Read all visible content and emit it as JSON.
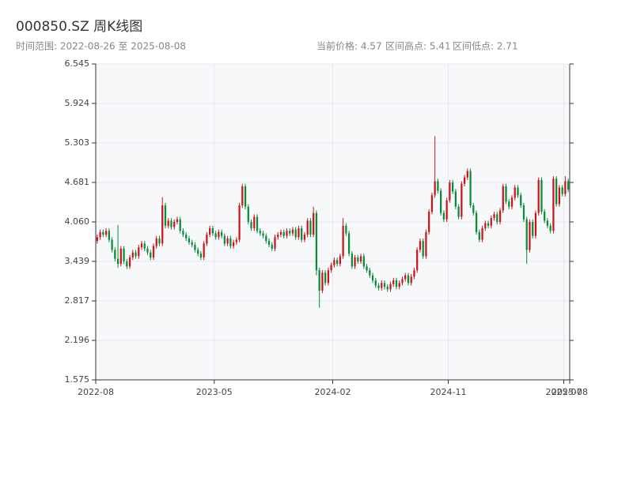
{
  "chart_data": {
    "type": "candlestick",
    "title": "000850.SZ 周K线图",
    "subtitle": "时间范围: 2022-08-26 至 2025-08-08",
    "stats": [
      "当前价格: 4.57",
      "区间高点: 5.41",
      "区间低点: 2.71"
    ],
    "up_color": "#c8161d",
    "down_color": "#0b8a3a",
    "ylim": [
      1.575,
      6.545
    ],
    "yticks": [
      1.575,
      2.196,
      2.817,
      3.439,
      {
        "value": 4.06,
        "label": "4.060"
      },
      4.681,
      5.303,
      5.924,
      6.545
    ],
    "xlim": [
      0,
      160
    ],
    "xticks": [
      {
        "value": 0,
        "label": "2022-08"
      },
      {
        "value": 40,
        "label": "2023-05"
      },
      {
        "value": 80,
        "label": "2024-02"
      },
      {
        "value": 119,
        "label": "2024-11"
      },
      {
        "value": 158,
        "label": "2025-07"
      },
      {
        "value": 160,
        "label": "2025-08"
      }
    ],
    "grid": true,
    "ohlc": [
      [
        3.76,
        3.86,
        3.72,
        3.82
      ],
      [
        3.82,
        3.94,
        3.78,
        3.9
      ],
      [
        3.9,
        3.94,
        3.82,
        3.86
      ],
      [
        3.86,
        3.96,
        3.82,
        3.92
      ],
      [
        3.92,
        3.96,
        3.74,
        3.78
      ],
      [
        3.78,
        3.82,
        3.58,
        3.62
      ],
      [
        3.62,
        3.66,
        3.44,
        3.48
      ],
      [
        3.48,
        4.01,
        3.34,
        3.4
      ],
      [
        3.4,
        3.68,
        3.36,
        3.64
      ],
      [
        3.64,
        3.68,
        3.4,
        3.44
      ],
      [
        3.44,
        3.48,
        3.32,
        3.36
      ],
      [
        3.36,
        3.54,
        3.32,
        3.5
      ],
      [
        3.5,
        3.62,
        3.46,
        3.58
      ],
      [
        3.58,
        3.62,
        3.48,
        3.52
      ],
      [
        3.52,
        3.7,
        3.48,
        3.66
      ],
      [
        3.66,
        3.76,
        3.62,
        3.72
      ],
      [
        3.72,
        3.76,
        3.6,
        3.64
      ],
      [
        3.64,
        3.68,
        3.54,
        3.58
      ],
      [
        3.58,
        3.62,
        3.46,
        3.5
      ],
      [
        3.5,
        3.72,
        3.46,
        3.68
      ],
      [
        3.68,
        3.84,
        3.64,
        3.8
      ],
      [
        3.8,
        3.84,
        3.68,
        3.72
      ],
      [
        3.72,
        4.45,
        3.68,
        4.32
      ],
      [
        4.32,
        4.36,
        3.96,
        4.0
      ],
      [
        4.0,
        4.12,
        3.96,
        4.08
      ],
      [
        4.08,
        4.12,
        3.94,
        3.98
      ],
      [
        3.98,
        4.1,
        3.94,
        4.06
      ],
      [
        4.06,
        4.14,
        4.02,
        4.1
      ],
      [
        4.1,
        4.14,
        3.88,
        3.92
      ],
      [
        3.92,
        3.96,
        3.82,
        3.86
      ],
      [
        3.86,
        3.9,
        3.76,
        3.8
      ],
      [
        3.8,
        3.84,
        3.7,
        3.74
      ],
      [
        3.74,
        3.78,
        3.66,
        3.7
      ],
      [
        3.7,
        3.74,
        3.58,
        3.62
      ],
      [
        3.62,
        3.66,
        3.52,
        3.56
      ],
      [
        3.56,
        3.6,
        3.46,
        3.5
      ],
      [
        3.5,
        3.76,
        3.46,
        3.72
      ],
      [
        3.72,
        3.9,
        3.68,
        3.86
      ],
      [
        3.86,
        4.0,
        3.82,
        3.96
      ],
      [
        3.96,
        4.0,
        3.84,
        3.88
      ],
      [
        3.88,
        3.92,
        3.78,
        3.82
      ],
      [
        3.82,
        3.94,
        3.78,
        3.9
      ],
      [
        3.9,
        3.94,
        3.8,
        3.84
      ],
      [
        3.84,
        3.88,
        3.68,
        3.72
      ],
      [
        3.72,
        3.84,
        3.68,
        3.8
      ],
      [
        3.8,
        3.84,
        3.64,
        3.68
      ],
      [
        3.68,
        3.78,
        3.64,
        3.74
      ],
      [
        3.74,
        3.82,
        3.7,
        3.78
      ],
      [
        3.78,
        4.36,
        3.74,
        4.32
      ],
      [
        4.32,
        4.66,
        4.28,
        4.62
      ],
      [
        4.62,
        4.66,
        4.26,
        4.3
      ],
      [
        4.3,
        4.34,
        4.02,
        4.06
      ],
      [
        4.06,
        4.1,
        3.92,
        3.96
      ],
      [
        3.96,
        4.18,
        3.92,
        4.14
      ],
      [
        4.14,
        4.18,
        3.88,
        3.92
      ],
      [
        3.92,
        3.96,
        3.84,
        3.88
      ],
      [
        3.88,
        3.92,
        3.8,
        3.84
      ],
      [
        3.84,
        3.88,
        3.72,
        3.76
      ],
      [
        3.76,
        3.8,
        3.66,
        3.7
      ],
      [
        3.7,
        3.74,
        3.6,
        3.64
      ],
      [
        3.64,
        3.86,
        3.6,
        3.82
      ],
      [
        3.82,
        3.9,
        3.78,
        3.86
      ],
      [
        3.86,
        3.94,
        3.82,
        3.9
      ],
      [
        3.9,
        3.94,
        3.8,
        3.84
      ],
      [
        3.84,
        3.96,
        3.8,
        3.92
      ],
      [
        3.92,
        3.96,
        3.84,
        3.88
      ],
      [
        3.88,
        3.98,
        3.84,
        3.94
      ],
      [
        3.94,
        3.98,
        3.78,
        3.82
      ],
      [
        3.82,
        4.0,
        3.78,
        3.96
      ],
      [
        3.96,
        4.0,
        3.74,
        3.78
      ],
      [
        3.78,
        3.9,
        3.74,
        3.86
      ],
      [
        3.86,
        4.12,
        3.82,
        4.08
      ],
      [
        4.08,
        4.12,
        3.82,
        3.86
      ],
      [
        3.86,
        4.3,
        3.82,
        4.2
      ],
      [
        4.2,
        4.24,
        3.22,
        3.3
      ],
      [
        3.3,
        3.34,
        2.71,
        2.98
      ],
      [
        2.98,
        3.3,
        2.94,
        3.26
      ],
      [
        3.26,
        3.3,
        3.06,
        3.1
      ],
      [
        3.1,
        3.34,
        3.06,
        3.3
      ],
      [
        3.3,
        3.42,
        3.26,
        3.38
      ],
      [
        3.38,
        3.5,
        3.34,
        3.46
      ],
      [
        3.46,
        3.5,
        3.36,
        3.4
      ],
      [
        3.4,
        3.56,
        3.36,
        3.52
      ],
      [
        3.52,
        4.12,
        3.48,
        4.0
      ],
      [
        4.0,
        4.04,
        3.84,
        3.88
      ],
      [
        3.88,
        3.92,
        3.52,
        3.56
      ],
      [
        3.56,
        3.6,
        3.32,
        3.36
      ],
      [
        3.36,
        3.54,
        3.32,
        3.5
      ],
      [
        3.5,
        3.54,
        3.4,
        3.44
      ],
      [
        3.44,
        3.56,
        3.4,
        3.52
      ],
      [
        3.52,
        3.56,
        3.32,
        3.36
      ],
      [
        3.36,
        3.4,
        3.26,
        3.3
      ],
      [
        3.3,
        3.34,
        3.18,
        3.22
      ],
      [
        3.22,
        3.26,
        3.1,
        3.14
      ],
      [
        3.14,
        3.18,
        3.02,
        3.06
      ],
      [
        3.06,
        3.1,
        2.98,
        3.02
      ],
      [
        3.02,
        3.14,
        2.98,
        3.1
      ],
      [
        3.1,
        3.14,
        3.0,
        3.04
      ],
      [
        3.04,
        3.08,
        2.96,
        3.0
      ],
      [
        3.0,
        3.12,
        2.96,
        3.08
      ],
      [
        3.08,
        3.18,
        3.04,
        3.14
      ],
      [
        3.14,
        3.18,
        3.0,
        3.04
      ],
      [
        3.04,
        3.14,
        3.0,
        3.1
      ],
      [
        3.1,
        3.2,
        3.06,
        3.16
      ],
      [
        3.16,
        3.26,
        3.12,
        3.22
      ],
      [
        3.22,
        3.26,
        3.06,
        3.1
      ],
      [
        3.1,
        3.24,
        3.06,
        3.2
      ],
      [
        3.2,
        3.34,
        3.16,
        3.3
      ],
      [
        3.3,
        3.66,
        3.26,
        3.62
      ],
      [
        3.62,
        3.8,
        3.58,
        3.76
      ],
      [
        3.76,
        3.8,
        3.48,
        3.52
      ],
      [
        3.52,
        3.94,
        3.48,
        3.9
      ],
      [
        3.9,
        4.26,
        3.86,
        4.22
      ],
      [
        4.22,
        4.52,
        4.18,
        4.48
      ],
      [
        4.48,
        5.41,
        4.44,
        4.7
      ],
      [
        4.7,
        4.74,
        4.51,
        4.55
      ],
      [
        4.55,
        4.59,
        4.16,
        4.2
      ],
      [
        4.2,
        4.24,
        4.06,
        4.1
      ],
      [
        4.1,
        4.44,
        4.06,
        4.4
      ],
      [
        4.4,
        4.72,
        4.36,
        4.68
      ],
      [
        4.68,
        4.72,
        4.5,
        4.54
      ],
      [
        4.54,
        4.58,
        4.26,
        4.3
      ],
      [
        4.3,
        4.34,
        4.1,
        4.14
      ],
      [
        4.14,
        4.7,
        4.1,
        4.66
      ],
      [
        4.66,
        4.8,
        4.62,
        4.76
      ],
      [
        4.76,
        4.9,
        4.72,
        4.86
      ],
      [
        4.86,
        4.9,
        4.28,
        4.32
      ],
      [
        4.32,
        4.36,
        4.16,
        4.2
      ],
      [
        4.2,
        4.24,
        3.86,
        3.9
      ],
      [
        3.9,
        3.94,
        3.74,
        3.78
      ],
      [
        3.78,
        4.0,
        3.74,
        3.96
      ],
      [
        3.96,
        4.08,
        3.92,
        4.04
      ],
      [
        4.04,
        4.08,
        3.96,
        4.0
      ],
      [
        4.0,
        4.16,
        3.96,
        4.12
      ],
      [
        4.12,
        4.22,
        4.08,
        4.18
      ],
      [
        4.18,
        4.22,
        4.02,
        4.06
      ],
      [
        4.06,
        4.28,
        4.02,
        4.24
      ],
      [
        4.24,
        4.66,
        4.2,
        4.62
      ],
      [
        4.62,
        4.66,
        4.34,
        4.38
      ],
      [
        4.38,
        4.42,
        4.26,
        4.3
      ],
      [
        4.3,
        4.48,
        4.26,
        4.44
      ],
      [
        4.44,
        4.64,
        4.4,
        4.6
      ],
      [
        4.6,
        4.64,
        4.44,
        4.48
      ],
      [
        4.48,
        4.52,
        4.28,
        4.32
      ],
      [
        4.32,
        4.36,
        4.06,
        4.1
      ],
      [
        4.1,
        4.14,
        3.4,
        3.62
      ],
      [
        3.62,
        4.1,
        3.58,
        4.06
      ],
      [
        4.06,
        4.1,
        3.8,
        3.84
      ],
      [
        3.84,
        4.24,
        3.8,
        4.2
      ],
      [
        4.2,
        4.76,
        4.16,
        4.72
      ],
      [
        4.72,
        4.76,
        4.18,
        4.22
      ],
      [
        4.22,
        4.26,
        4.04,
        4.08
      ],
      [
        4.08,
        4.12,
        3.96,
        4.0
      ],
      [
        4.0,
        4.04,
        3.88,
        3.92
      ],
      [
        3.92,
        4.78,
        3.88,
        4.74
      ],
      [
        4.74,
        4.78,
        4.3,
        4.34
      ],
      [
        4.34,
        4.64,
        4.3,
        4.6
      ],
      [
        4.6,
        4.64,
        4.46,
        4.5
      ],
      [
        4.5,
        4.78,
        4.46,
        4.7
      ],
      [
        4.7,
        4.74,
        4.53,
        4.57
      ]
    ]
  }
}
